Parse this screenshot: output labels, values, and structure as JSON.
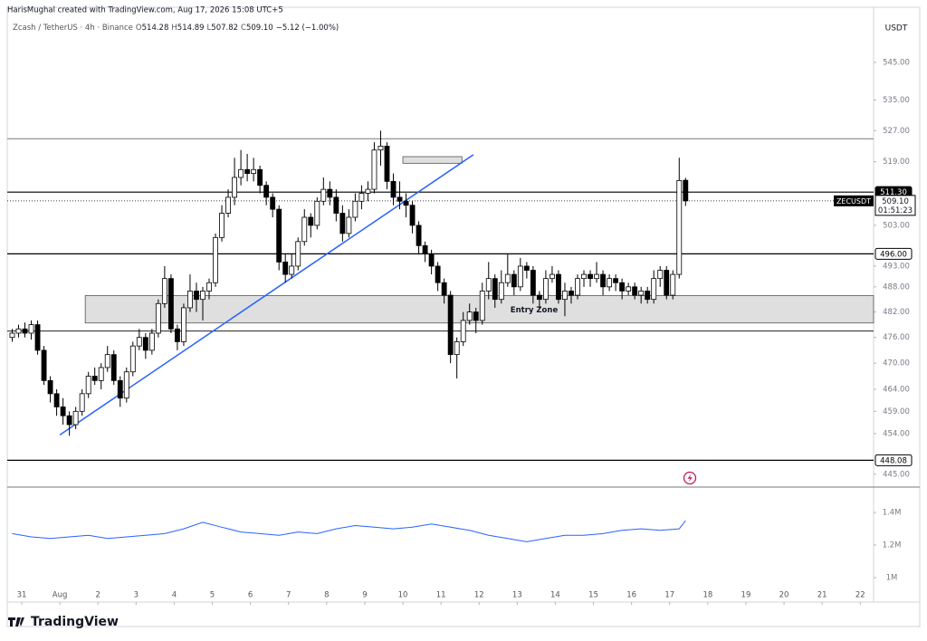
{
  "chart_data": {
    "type": "candlestick",
    "credit": "HarisMughal created with TradingView.com, Aug 17, 2026 15:08 UTC+5",
    "legend": {
      "symbol": "Zcash / TetherUS · 4h · Binance",
      "ohlc": [
        {
          "key": "O",
          "value": "514.28"
        },
        {
          "key": "H",
          "value": "514.89"
        },
        {
          "key": "L",
          "value": "507.82"
        },
        {
          "key": "C",
          "value": "509.10"
        }
      ],
      "change": "−5.12 (−1.00%)"
    },
    "currency": "USDT",
    "brand": "TradingView",
    "log": true,
    "up_color": "#ffffff",
    "down_color": "#000000",
    "outline": "#000000",
    "xlim": [
      -0.28,
      136.1
    ],
    "xticks": [
      {
        "value": 2,
        "label": "31"
      },
      {
        "value": 8,
        "label": "Aug"
      },
      {
        "value": 14,
        "label": "2"
      },
      {
        "value": 20,
        "label": "3"
      },
      {
        "value": 26,
        "label": "4"
      },
      {
        "value": 32,
        "label": "5"
      },
      {
        "value": 38,
        "label": "6"
      },
      {
        "value": 44,
        "label": "7"
      },
      {
        "value": 50,
        "label": "8"
      },
      {
        "value": 56,
        "label": "9"
      },
      {
        "value": 62,
        "label": "10"
      },
      {
        "value": 68,
        "label": "11"
      },
      {
        "value": 74,
        "label": "12"
      },
      {
        "value": 80,
        "label": "13"
      },
      {
        "value": 86,
        "label": "14"
      },
      {
        "value": 92,
        "label": "15"
      },
      {
        "value": 98,
        "label": "16"
      },
      {
        "value": 104,
        "label": "17"
      },
      {
        "value": 110,
        "label": "18"
      },
      {
        "value": 116,
        "label": "19"
      },
      {
        "value": 122,
        "label": "20"
      },
      {
        "value": 128,
        "label": "21"
      },
      {
        "value": 134,
        "label": "22"
      }
    ],
    "ylim": [
      442.2,
      560.0
    ],
    "yticks": [
      {
        "value": 545,
        "label": "545.00"
      },
      {
        "value": 535,
        "label": "535.00"
      },
      {
        "value": 527,
        "label": "527.00"
      },
      {
        "value": 519,
        "label": "519.00"
      },
      {
        "value": 503,
        "label": "503.00"
      },
      {
        "value": 493,
        "label": "493.00"
      },
      {
        "value": 488,
        "label": "488.00"
      },
      {
        "value": 482,
        "label": "482.00"
      },
      {
        "value": 476,
        "label": "476.00"
      },
      {
        "value": 470,
        "label": "470.00"
      },
      {
        "value": 464,
        "label": "464.00"
      },
      {
        "value": 459,
        "label": "459.00"
      },
      {
        "value": 454,
        "label": "454.00"
      },
      {
        "value": 445,
        "label": "445.00"
      }
    ],
    "levels": [
      {
        "value": 524.9,
        "color": "#7a7a7a"
      },
      {
        "value": 511.3,
        "label": "511.30",
        "color": "#000000"
      },
      {
        "value": 496,
        "label": "496.00",
        "color": "#000000"
      },
      {
        "value": 477.5,
        "color": "#000000"
      },
      {
        "value": 448.08,
        "label": "448.08",
        "color": "#000000"
      }
    ],
    "last": {
      "symbol": "ZECUSDT",
      "value": 509.1,
      "label": "509.10",
      "countdown": "01:51:23"
    },
    "zones": [
      {
        "label": "Entry Zone",
        "x": [
          12,
          136.1
        ],
        "y": [
          479.4,
          485.9
        ]
      },
      {
        "x": [
          62,
          71.3
        ],
        "y": [
          518.6,
          520.3
        ]
      }
    ],
    "trendline": {
      "x": [
        8,
        73.1
      ],
      "y": [
        453.7,
        520.8
      ],
      "color": "#2962ff"
    },
    "ohlc": [
      [
        476,
        478,
        475,
        477
      ],
      [
        477,
        479,
        476,
        478
      ],
      [
        478,
        479.5,
        476,
        477
      ],
      [
        477,
        480,
        475.5,
        479
      ],
      [
        479,
        480,
        472,
        473
      ],
      [
        473,
        474,
        465,
        466
      ],
      [
        466,
        467,
        461,
        463
      ],
      [
        463,
        464,
        458,
        460
      ],
      [
        460,
        462,
        456,
        458
      ],
      [
        458,
        459,
        453.5,
        456
      ],
      [
        456,
        460,
        455,
        459
      ],
      [
        459,
        464,
        458,
        463
      ],
      [
        463,
        468,
        462,
        467
      ],
      [
        467,
        469,
        465,
        466
      ],
      [
        466,
        470,
        464,
        469
      ],
      [
        469,
        474,
        468,
        472
      ],
      [
        472,
        473,
        465,
        466
      ],
      [
        466,
        467,
        460,
        462
      ],
      [
        462,
        469,
        461,
        468
      ],
      [
        468,
        475,
        467,
        474
      ],
      [
        474,
        478,
        473,
        476
      ],
      [
        476,
        477,
        471,
        473
      ],
      [
        473,
        478,
        472,
        477
      ],
      [
        477,
        485,
        476,
        484
      ],
      [
        484,
        493,
        483,
        490
      ],
      [
        490,
        491,
        477,
        478
      ],
      [
        478,
        479,
        473,
        475
      ],
      [
        475,
        484,
        474,
        483
      ],
      [
        483,
        491,
        482,
        487
      ],
      [
        487,
        489,
        482,
        485
      ],
      [
        485,
        488,
        480,
        487
      ],
      [
        487,
        490,
        485,
        489
      ],
      [
        489,
        501,
        488,
        500
      ],
      [
        500,
        508,
        499,
        506
      ],
      [
        506,
        512,
        505,
        510
      ],
      [
        510,
        520,
        508,
        515
      ],
      [
        515,
        522,
        513,
        517
      ],
      [
        517,
        521,
        514,
        516
      ],
      [
        516,
        520,
        514,
        517
      ],
      [
        517,
        518,
        511,
        513
      ],
      [
        513,
        514,
        508,
        510
      ],
      [
        510,
        511,
        505,
        507
      ],
      [
        507,
        508,
        492,
        494
      ],
      [
        494,
        496,
        489,
        491
      ],
      [
        491,
        496,
        490,
        493
      ],
      [
        493,
        500,
        492,
        499
      ],
      [
        499,
        507,
        498,
        505
      ],
      [
        505,
        506,
        500,
        503
      ],
      [
        503,
        510,
        502,
        509
      ],
      [
        509,
        515,
        508,
        512
      ],
      [
        512,
        514,
        508,
        510
      ],
      [
        510,
        512,
        504,
        506
      ],
      [
        506,
        508,
        499,
        501
      ],
      [
        501,
        507,
        500,
        505
      ],
      [
        505,
        511,
        504,
        509
      ],
      [
        509,
        513,
        507,
        511
      ],
      [
        511,
        514,
        509,
        512
      ],
      [
        512,
        524,
        511,
        522
      ],
      [
        522,
        527,
        518,
        523
      ],
      [
        523,
        524,
        512,
        514
      ],
      [
        514,
        516,
        508,
        510
      ],
      [
        510,
        514,
        507,
        509
      ],
      [
        509,
        511,
        505,
        508
      ],
      [
        508,
        509,
        501,
        503
      ],
      [
        503,
        504,
        496,
        498
      ],
      [
        498,
        499,
        494,
        496
      ],
      [
        496,
        497,
        491,
        493
      ],
      [
        493,
        494,
        487,
        489
      ],
      [
        489,
        490,
        484,
        486
      ],
      [
        486,
        487,
        470,
        472
      ],
      [
        472,
        476,
        466.5,
        475
      ],
      [
        475,
        482,
        474,
        480
      ],
      [
        480,
        484,
        479,
        482
      ],
      [
        482,
        483,
        477,
        480
      ],
      [
        480,
        489,
        479,
        487
      ],
      [
        487,
        494,
        485,
        490
      ],
      [
        490,
        491,
        483,
        485
      ],
      [
        485,
        492,
        484,
        489
      ],
      [
        489,
        496,
        488,
        491
      ],
      [
        491,
        492,
        486,
        488
      ],
      [
        488,
        495,
        487,
        493
      ],
      [
        493,
        494,
        490,
        492
      ],
      [
        492,
        493,
        484,
        486
      ],
      [
        486,
        487,
        483,
        485
      ],
      [
        485,
        492,
        484,
        490
      ],
      [
        490,
        493,
        489,
        491
      ],
      [
        491,
        492,
        484,
        485
      ],
      [
        485,
        489,
        481,
        487
      ],
      [
        487,
        488,
        484,
        486
      ],
      [
        486,
        491,
        485,
        490
      ],
      [
        490,
        492,
        488,
        491
      ],
      [
        491,
        492,
        488,
        490
      ],
      [
        490,
        494,
        489,
        491
      ],
      [
        491,
        492,
        486,
        488
      ],
      [
        488,
        491,
        487,
        490
      ],
      [
        490,
        491,
        487,
        489
      ],
      [
        489,
        490,
        485,
        487
      ],
      [
        487,
        489,
        486,
        488
      ],
      [
        488,
        489,
        485,
        486
      ],
      [
        486,
        488,
        484,
        487
      ],
      [
        487,
        488,
        484,
        485
      ],
      [
        485,
        492,
        484,
        490
      ],
      [
        490,
        493,
        488,
        492
      ],
      [
        492,
        493,
        485,
        486
      ],
      [
        486,
        492,
        485,
        491
      ],
      [
        491,
        520,
        490,
        514.22
      ],
      [
        514.28,
        514.89,
        507.82,
        509.1
      ]
    ],
    "volume": {
      "color": "#2962ff",
      "x": [
        0,
        3,
        6,
        9,
        12,
        15,
        18,
        21,
        24,
        27,
        30,
        33,
        36,
        39,
        42,
        45,
        48,
        51,
        54,
        57,
        60,
        63,
        66,
        69,
        72,
        75,
        78,
        81,
        84,
        87,
        90,
        93,
        96,
        99,
        102,
        105,
        106
      ],
      "values": [
        1270000,
        1250000,
        1240000,
        1250000,
        1260000,
        1240000,
        1250000,
        1260000,
        1270000,
        1300000,
        1340000,
        1310000,
        1280000,
        1270000,
        1260000,
        1280000,
        1270000,
        1300000,
        1320000,
        1310000,
        1300000,
        1310000,
        1330000,
        1310000,
        1290000,
        1260000,
        1240000,
        1220000,
        1240000,
        1260000,
        1260000,
        1270000,
        1290000,
        1300000,
        1290000,
        1300000,
        1350000
      ],
      "ylim": [
        850000,
        1556000
      ],
      "yticks": [
        {
          "value": 1400000,
          "label": "1.4M"
        },
        {
          "value": 1200000,
          "label": "1.2M"
        },
        {
          "value": 1000000,
          "label": "1M"
        }
      ]
    }
  }
}
